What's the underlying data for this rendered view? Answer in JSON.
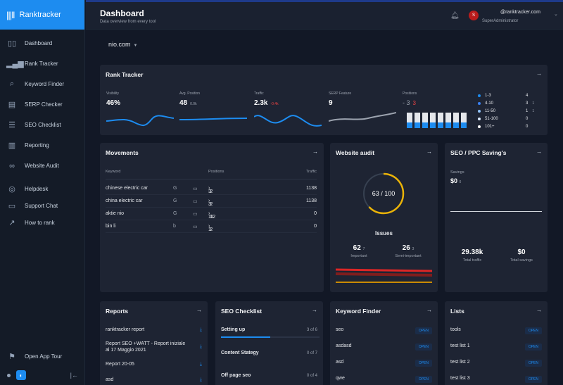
{
  "brand": {
    "name": "Ranktracker"
  },
  "sidebar": {
    "items": [
      {
        "label": "Dashboard",
        "icon": "dashboard-icon"
      },
      {
        "label": "Rank Tracker",
        "icon": "bar-chart-icon"
      },
      {
        "label": "Keyword Finder",
        "icon": "search-icon"
      },
      {
        "label": "SERP Checker",
        "icon": "serp-icon"
      },
      {
        "label": "SEO Checklist",
        "icon": "checklist-icon"
      },
      {
        "label": "Reporting",
        "icon": "report-icon"
      },
      {
        "label": "Website Audit",
        "icon": "binoculars-icon"
      }
    ],
    "secondary": [
      {
        "label": "Helpdesk",
        "icon": "lifebuoy-icon"
      },
      {
        "label": "Support Chat",
        "icon": "chat-icon"
      },
      {
        "label": "How to rank",
        "icon": "trend-icon"
      }
    ],
    "tour": "Open App Tour"
  },
  "header": {
    "title": "Dashboard",
    "subtitle": "Data overview from every tool",
    "avatar_initial": "S",
    "email": "@ranktracker.com",
    "role": "SuperAdministrator"
  },
  "project": {
    "name": "nio.com"
  },
  "rank_tracker": {
    "title": "Rank Tracker",
    "metrics": [
      {
        "label": "Visibility",
        "value": "46%",
        "change": ""
      },
      {
        "label": "Avg. Position",
        "value": "48",
        "change": "0.0k"
      },
      {
        "label": "Traffic",
        "value": "2.3k",
        "change": "-0.4k"
      },
      {
        "label": "SERP Feature",
        "value": "9",
        "change": ""
      },
      {
        "label": "Positions",
        "value": "- 3",
        "change": "3"
      }
    ],
    "distribution": [
      {
        "label": "1-3",
        "value": "4",
        "change": ""
      },
      {
        "label": "4-10",
        "value": "3",
        "change": "1"
      },
      {
        "label": "11-50",
        "value": "1",
        "change": "1"
      },
      {
        "label": "51-100",
        "value": "0",
        "change": ""
      },
      {
        "label": "101+",
        "value": "0",
        "change": ""
      }
    ],
    "colors": {
      "line_blue": "#1d8cf0",
      "line_gray": "#9ca3af",
      "red": "#ef4444"
    }
  },
  "movements": {
    "title": "Movements",
    "columns": [
      "Keyword",
      "Positions",
      "Traffic"
    ],
    "rows": [
      {
        "keyword": "chinese electric car",
        "engine": "G",
        "from": "3",
        "to": "2",
        "change": "1",
        "traffic": "1138"
      },
      {
        "keyword": "china electric car",
        "engine": "G",
        "from": "3",
        "to": "2",
        "change": "1",
        "traffic": "1138"
      },
      {
        "keyword": "aktie nio",
        "engine": "G",
        "from": "11",
        "to": "12",
        "change": "1",
        "traffic": "0"
      },
      {
        "keyword": "bin li",
        "engine": "b",
        "from": "1",
        "to": "2",
        "change": "1",
        "traffic": "0"
      }
    ]
  },
  "audit": {
    "title": "Website audit",
    "score": "63 / 100",
    "score_fraction": 0.63,
    "issues_title": "Issues",
    "important": {
      "value": "62",
      "change": "7",
      "label": "Important"
    },
    "semi": {
      "value": "26",
      "change": "3",
      "label": "Semi-important"
    }
  },
  "savings": {
    "title": "SEO / PPC Saving's",
    "label": "Savings",
    "value": "$0",
    "change": "0",
    "traffic": {
      "value": "29.38k",
      "label": "Total traffic"
    },
    "total": {
      "value": "$0",
      "label": "Total savings"
    }
  },
  "reports": {
    "title": "Reports",
    "items": [
      "ranktracker report",
      "Report SEO +WATT - Report iniziale al 17 Maggio 2021",
      "Report 20-05",
      "asd"
    ]
  },
  "checklist": {
    "title": "SEO Checklist",
    "items": [
      {
        "label": "Setting up",
        "count": "3 of 6",
        "progress": 0.5
      },
      {
        "label": "Content Stategy",
        "count": "0 of 7",
        "progress": 0
      },
      {
        "label": "Off page seo",
        "count": "0 of 4",
        "progress": 0
      }
    ]
  },
  "keyword_finder": {
    "title": "Keyword Finder",
    "open_label": "OPEN",
    "items": [
      "seo",
      "asdasd",
      "asd",
      "qwe"
    ]
  },
  "lists": {
    "title": "Lists",
    "open_label": "OPEN",
    "items": [
      "tools",
      "test list 1",
      "test list 2",
      "test list 3"
    ]
  }
}
